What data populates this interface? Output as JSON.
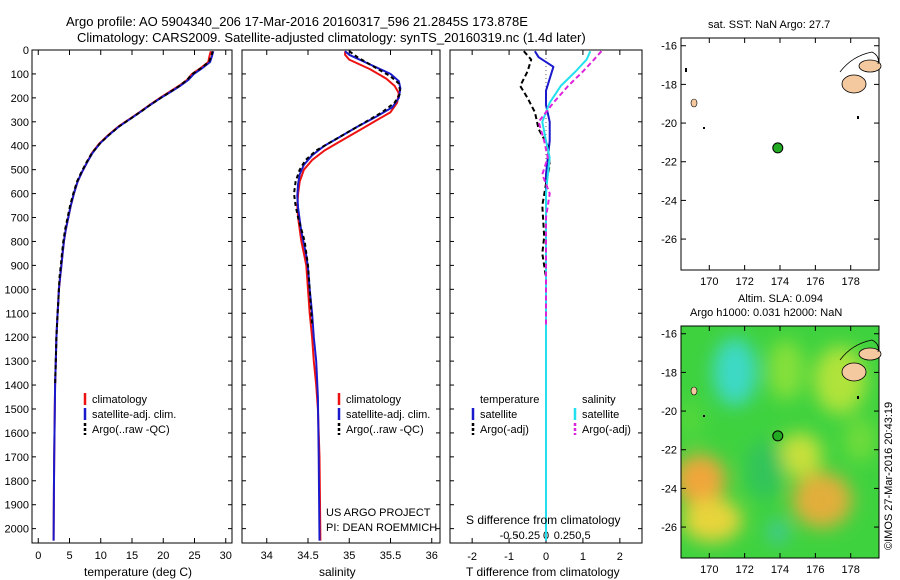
{
  "header": {
    "line1": "Argo profile: AO 5904340_206 17-Mar-2016 20160317_596 21.2845S 173.878E",
    "line2": "Climatology: CARS2009. Satellite-adjusted climatology: synTS_20160319.nc (1.4d later)"
  },
  "footer_project": {
    "line1": "US ARGO PROJECT",
    "line2": "PI: DEAN ROEMMICH"
  },
  "credit": "©IMOS 27-Mar-2016 20:43:19",
  "colors": {
    "climatology": "#ee1111",
    "satellite": "#1a1acc",
    "argo": "#000000",
    "sal_satellite": "#22e0ee",
    "sal_argo": "#dd22dd",
    "land": "#f5c9a0",
    "float_marker": "#22aa22"
  },
  "chart_data": [
    {
      "id": "temperature-profile",
      "type": "line",
      "xlabel": "temperature (deg C)",
      "ylabel": "",
      "xlim": [
        -1,
        31
      ],
      "ylim": [
        2060,
        0
      ],
      "xticks": [
        "0",
        "5",
        "10",
        "15",
        "20",
        "25",
        "30"
      ],
      "xtick_values": [
        0,
        5,
        10,
        15,
        20,
        25,
        30
      ],
      "yticks": [
        "0",
        "100",
        "200",
        "300",
        "400",
        "500",
        "600",
        "700",
        "800",
        "900",
        "1000",
        "1100",
        "1200",
        "1300",
        "1400",
        "1500",
        "1600",
        "1700",
        "1800",
        "1900",
        "2000"
      ],
      "ytick_values": [
        0,
        100,
        200,
        300,
        400,
        500,
        600,
        700,
        800,
        900,
        1000,
        1100,
        1200,
        1300,
        1400,
        1500,
        1600,
        1700,
        1800,
        1900,
        2000
      ],
      "legend": [
        "climatology",
        "satellite-adj. clim.",
        "Argo(..raw -QC)"
      ],
      "series": [
        {
          "name": "climatology",
          "style": "solid",
          "x": [
            27.6,
            27.4,
            27.2,
            26,
            24.6,
            23.8,
            22.5,
            21,
            19.5,
            17.8,
            16.2,
            14.5,
            12.8,
            11.2,
            9.8,
            8.6,
            7.8,
            7.0,
            6.3,
            5.7,
            5.2,
            4.8,
            4.4,
            4.1,
            3.9,
            3.7,
            3.5,
            3.3,
            3.2,
            3.1,
            3.0,
            2.9,
            2.8,
            2.7,
            2.65,
            2.6,
            2.55,
            2.5,
            2.45
          ],
          "depth": [
            5,
            25,
            50,
            75,
            100,
            125,
            150,
            175,
            200,
            230,
            260,
            290,
            320,
            355,
            390,
            430,
            470,
            510,
            550,
            600,
            650,
            700,
            750,
            800,
            850,
            900,
            950,
            1000,
            1050,
            1100,
            1150,
            1200,
            1300,
            1400,
            1500,
            1600,
            1700,
            1850,
            2050
          ]
        },
        {
          "name": "satellite-adj. clim.",
          "style": "solid",
          "x": [
            28.0,
            27.8,
            27.5,
            26.3,
            24.9,
            24.0,
            22.7,
            21.2,
            19.6,
            17.9,
            16.3,
            14.6,
            12.9,
            11.3,
            9.9,
            8.7,
            7.8,
            7.0,
            6.3,
            5.7,
            5.2,
            4.8,
            4.4,
            4.1,
            3.9,
            3.7,
            3.5,
            3.3,
            3.2,
            3.1,
            3.0,
            2.9,
            2.8,
            2.7,
            2.65,
            2.6,
            2.55,
            2.5,
            2.45
          ],
          "depth": [
            5,
            25,
            50,
            75,
            100,
            125,
            150,
            175,
            200,
            230,
            260,
            290,
            320,
            355,
            390,
            430,
            470,
            510,
            550,
            600,
            650,
            700,
            750,
            800,
            850,
            900,
            950,
            1000,
            1050,
            1100,
            1150,
            1200,
            1300,
            1400,
            1500,
            1600,
            1700,
            1850,
            2050
          ]
        },
        {
          "name": "Argo(..raw -QC)",
          "style": "dashed",
          "x": [
            27.9,
            27.7,
            27.3,
            26.1,
            24.7,
            23.8,
            22.6,
            21.1,
            19.6,
            17.9,
            16.3,
            14.6,
            12.9,
            11.3,
            9.9,
            8.6,
            7.7,
            6.9,
            6.2,
            5.6,
            5.1,
            4.7,
            4.3,
            4.0,
            3.8,
            3.6,
            3.4,
            3.3,
            3.2,
            3.1,
            3.0,
            2.9,
            2.8,
            2.7
          ],
          "depth": [
            5,
            25,
            50,
            75,
            100,
            125,
            150,
            175,
            200,
            230,
            260,
            290,
            320,
            355,
            390,
            430,
            470,
            510,
            550,
            600,
            650,
            700,
            750,
            800,
            850,
            900,
            950,
            1000,
            1050,
            1100,
            1150,
            1200,
            1300,
            1400
          ]
        }
      ]
    },
    {
      "id": "salinity-profile",
      "type": "line",
      "xlabel": "salinity",
      "xlim": [
        33.7,
        36.1
      ],
      "ylim": [
        2060,
        0
      ],
      "xticks": [
        "34",
        "34.5",
        "35",
        "35.5",
        "36"
      ],
      "xtick_values": [
        34,
        34.5,
        35,
        35.5,
        36
      ],
      "legend": [
        "climatology",
        "satellite-adj. clim.",
        "Argo(..raw -QC)"
      ],
      "series": [
        {
          "name": "climatology",
          "style": "solid",
          "x": [
            34.95,
            34.95,
            35.0,
            35.25,
            35.45,
            35.55,
            35.6,
            35.58,
            35.5,
            35.3,
            35.1,
            34.9,
            34.7,
            34.55,
            34.45,
            34.4,
            34.38,
            34.37,
            34.38,
            34.4,
            34.42,
            34.45,
            34.48,
            34.5,
            34.52,
            34.55,
            34.57,
            34.6,
            34.62,
            34.64,
            34.65
          ],
          "depth": [
            5,
            20,
            40,
            80,
            120,
            150,
            180,
            220,
            260,
            300,
            340,
            380,
            420,
            460,
            500,
            550,
            600,
            650,
            700,
            750,
            800,
            850,
            900,
            1000,
            1100,
            1200,
            1300,
            1400,
            1500,
            1700,
            2050
          ]
        },
        {
          "name": "satellite-adj. clim.",
          "style": "solid",
          "x": [
            34.95,
            35.0,
            35.25,
            35.5,
            35.6,
            35.62,
            35.6,
            35.52,
            35.32,
            35.1,
            34.9,
            34.7,
            34.55,
            34.45,
            34.4,
            34.38,
            34.37,
            34.38,
            34.4,
            34.42,
            34.45,
            34.48,
            34.5,
            34.52,
            34.55,
            34.57,
            34.6,
            34.62,
            34.63,
            34.64
          ],
          "depth": [
            5,
            20,
            60,
            100,
            130,
            160,
            200,
            240,
            280,
            320,
            360,
            400,
            440,
            480,
            520,
            560,
            610,
            660,
            710,
            760,
            810,
            860,
            910,
            1000,
            1100,
            1200,
            1300,
            1450,
            1700,
            2050
          ]
        },
        {
          "name": "Argo(..raw -QC)",
          "style": "dashed",
          "x": [
            35.0,
            35.1,
            35.3,
            35.5,
            35.6,
            35.62,
            35.55,
            35.4,
            35.2,
            35.0,
            34.8,
            34.6,
            34.47,
            34.4,
            34.35,
            34.33,
            34.35,
            34.38,
            34.42,
            34.46,
            34.5,
            34.52,
            34.55
          ],
          "depth": [
            5,
            30,
            70,
            110,
            140,
            180,
            220,
            260,
            300,
            340,
            380,
            420,
            460,
            500,
            550,
            600,
            650,
            700,
            750,
            800,
            900,
            1000,
            1150
          ]
        }
      ]
    },
    {
      "id": "difference-profile",
      "type": "line",
      "xlabel": "T difference from climatology",
      "xlabel_top": "S difference from climatology",
      "xlim": [
        -2.6,
        2.6
      ],
      "ylim": [
        2060,
        0
      ],
      "xticks": [
        "-2",
        "-1",
        "0",
        "1",
        "2"
      ],
      "xtick_values": [
        -2,
        -1,
        0,
        1,
        2
      ],
      "xticks_top": [
        "-0.5",
        "-0.25",
        "0",
        "0.25",
        "0.5"
      ],
      "xtick_values_top": [
        -1,
        -0.5,
        0,
        0.5,
        1
      ],
      "legend_t": [
        "temperature",
        "satellite",
        "Argo(-adj)"
      ],
      "legend_s": [
        "salinity",
        "satellite",
        "Argo(-adj)"
      ],
      "series": [
        {
          "name": "temperature satellite",
          "style": "solid",
          "x": [
            -0.3,
            -0.2,
            0.2,
            0.1,
            0.0,
            0.0,
            0.1,
            0.1,
            0.05,
            0,
            0,
            0,
            0,
            0,
            0,
            0,
            0,
            0,
            0,
            0
          ],
          "depth": [
            5,
            30,
            70,
            120,
            170,
            230,
            300,
            380,
            450,
            520,
            600,
            700,
            800,
            900,
            1000,
            1200,
            1400,
            1600,
            1800,
            2050
          ]
        },
        {
          "name": "temperature Argo(-adj)",
          "style": "dashed",
          "x": [
            -0.6,
            -0.4,
            -0.5,
            -0.7,
            -0.5,
            -0.3,
            -0.2,
            0.05,
            0.1,
            0.0,
            -0.1,
            -0.05,
            -0.1,
            0.0,
            0.0,
            0.0
          ],
          "depth": [
            5,
            40,
            90,
            150,
            200,
            260,
            330,
            400,
            480,
            560,
            650,
            780,
            850,
            950,
            1100,
            1400
          ]
        },
        {
          "name": "salinity satellite",
          "style": "solid",
          "x": [
            1.2,
            1.1,
            0.8,
            0.4,
            0.1,
            -0.1,
            0.0,
            0.1,
            0.05,
            0.0,
            0,
            0,
            0,
            0,
            0,
            0,
            0,
            0,
            0
          ],
          "depth": [
            5,
            40,
            90,
            150,
            220,
            300,
            380,
            450,
            520,
            600,
            700,
            800,
            900,
            1000,
            1200,
            1400,
            1600,
            1800,
            2050
          ]
        },
        {
          "name": "salinity Argo(-adj)",
          "style": "dashed",
          "x": [
            1.5,
            1.3,
            1.0,
            0.6,
            0.2,
            -0.2,
            -0.05,
            0.05,
            -0.1,
            0.1,
            0.0,
            0.0,
            0.0,
            0.0
          ],
          "depth": [
            5,
            40,
            90,
            150,
            220,
            300,
            380,
            450,
            520,
            600,
            700,
            850,
            1000,
            1150
          ]
        }
      ]
    },
    {
      "id": "sst-map",
      "type": "scatter",
      "title": "sat. SST: NaN  Argo: 27.7",
      "xlim": [
        168.4,
        179.6
      ],
      "ylim": [
        -27.6,
        -15.6
      ],
      "xticks": [
        "170",
        "172",
        "174",
        "176",
        "178"
      ],
      "xtick_values": [
        170,
        172,
        174,
        176,
        178
      ],
      "yticks": [
        "-16",
        "-18",
        "-20",
        "-22",
        "-24",
        "-26"
      ],
      "ytick_values": [
        -16,
        -18,
        -20,
        -22,
        -24,
        -26
      ],
      "points": [
        {
          "lon": 173.878,
          "lat": -21.2845,
          "label": "Argo float"
        }
      ]
    },
    {
      "id": "sla-map",
      "type": "heatmap",
      "title_line1": "Altim. SLA: 0.094",
      "title_line2": "Argo h1000: 0.031  h2000: NaN",
      "xlim": [
        168.4,
        179.6
      ],
      "ylim": [
        -27.6,
        -15.6
      ],
      "xticks": [
        "170",
        "172",
        "174",
        "176",
        "178"
      ],
      "xtick_values": [
        170,
        172,
        174,
        176,
        178
      ],
      "yticks": [
        "-16",
        "-18",
        "-20",
        "-22",
        "-24",
        "-26"
      ],
      "ytick_values": [
        -16,
        -18,
        -20,
        -22,
        -24,
        -26
      ],
      "points": [
        {
          "lon": 173.878,
          "lat": -21.2845,
          "label": "Argo float"
        }
      ]
    }
  ]
}
